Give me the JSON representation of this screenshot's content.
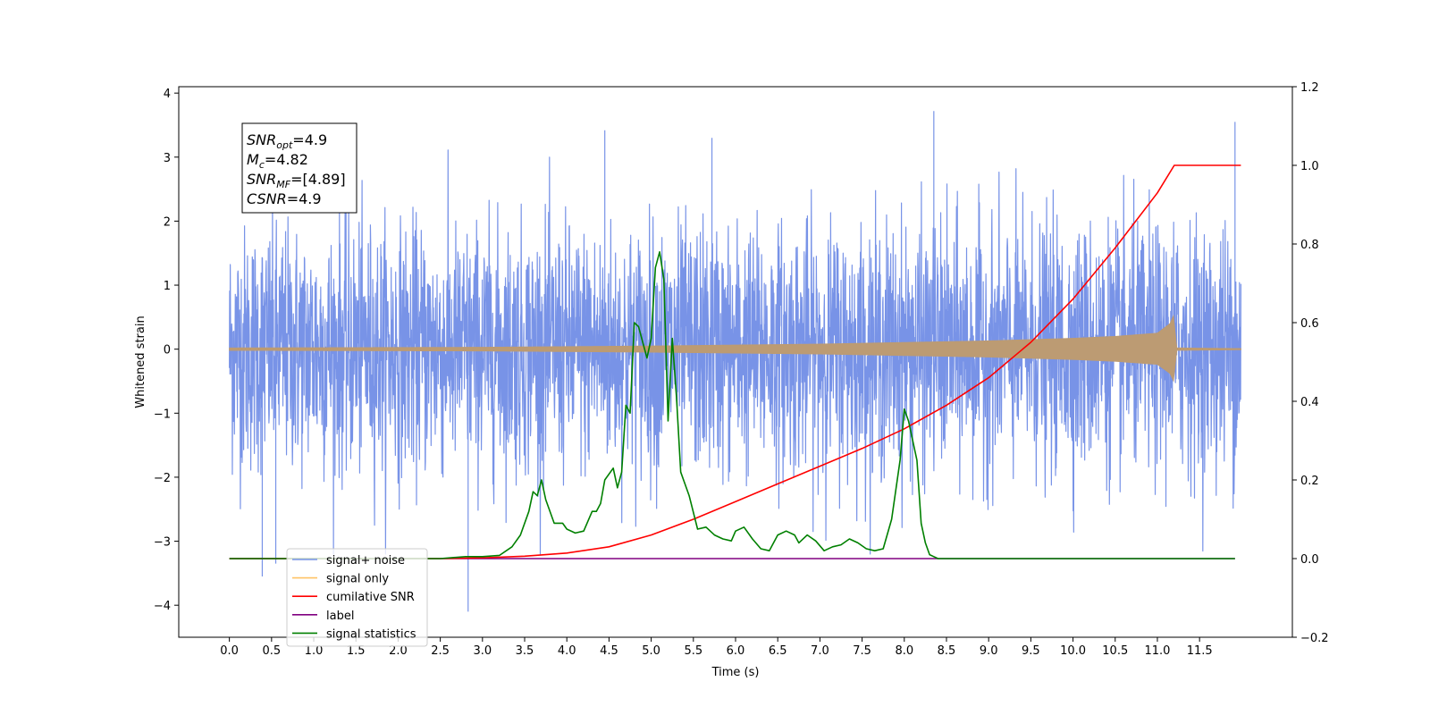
{
  "chart_data": {
    "type": "line",
    "xlabel": "Time (s)",
    "ylabel": "Whitened strain",
    "xlim": [
      -0.6,
      12.6
    ],
    "ylim_left": [
      -4.5,
      4.1
    ],
    "ylim_right": [
      -0.2,
      1.2
    ],
    "x_ticks": [
      0.0,
      0.5,
      1.0,
      1.5,
      2.0,
      2.5,
      3.0,
      3.5,
      4.0,
      4.5,
      5.0,
      5.5,
      6.0,
      6.5,
      7.0,
      7.5,
      8.0,
      8.5,
      9.0,
      9.5,
      10.0,
      10.5,
      11.0,
      11.5
    ],
    "x_tick_labels": [
      "0.0",
      "0.5",
      "1.0",
      "1.5",
      "2.0",
      "2.5",
      "3.0",
      "3.5",
      "4.0",
      "4.5",
      "5.0",
      "5.5",
      "6.0",
      "6.5",
      "7.0",
      "7.5",
      "8.0",
      "8.5",
      "9.0",
      "9.5",
      "10.0",
      "10.5",
      "11.0",
      "11.5"
    ],
    "y_left_ticks": [
      -4,
      -3,
      -2,
      -1,
      0,
      1,
      2,
      3,
      4
    ],
    "y_left_tick_labels": [
      "−4",
      "−3",
      "−2",
      "−1",
      "0",
      "1",
      "2",
      "3",
      "4"
    ],
    "y_right_ticks": [
      -0.2,
      0.0,
      0.2,
      0.4,
      0.6,
      0.8,
      1.0,
      1.2
    ],
    "y_right_tick_labels": [
      "−0.2",
      "0.0",
      "0.2",
      "0.4",
      "0.6",
      "0.8",
      "1.0",
      "1.2"
    ],
    "grid": false,
    "legend_position": "lower-left",
    "annotation": {
      "lines": [
        {
          "base": "SNR",
          "sub": "opt",
          "value": "=4.9"
        },
        {
          "base": "M",
          "sub": "c",
          "value": "=4.82"
        },
        {
          "base": "SNR",
          "sub": "MF",
          "value": "=[4.89]"
        },
        {
          "base": "CSNR",
          "sub": "",
          "value": "=4.9"
        }
      ]
    },
    "series": [
      {
        "name": "signal+ noise",
        "color": "#7893e7",
        "axis": "left",
        "x_range": [
          0.0,
          11.99
        ],
        "typical_amplitude": [
          -2.3,
          2.3
        ],
        "extremes": [
          [
            0.39,
            -3.55
          ],
          [
            0.55,
            -3.35
          ],
          [
            2.83,
            -4.1
          ],
          [
            8.35,
            3.72
          ],
          [
            11.92,
            3.55
          ],
          [
            4.45,
            3.42
          ],
          [
            5.72,
            3.3
          ]
        ]
      },
      {
        "name": "signal only",
        "color": "#ffc264",
        "axis": "left",
        "x_range": [
          0.0,
          11.99
        ],
        "envelope": [
          [
            0.0,
            0.02
          ],
          [
            3.0,
            0.03
          ],
          [
            5.0,
            0.05
          ],
          [
            7.0,
            0.08
          ],
          [
            9.0,
            0.13
          ],
          [
            10.0,
            0.17
          ],
          [
            10.5,
            0.2
          ],
          [
            11.0,
            0.25
          ],
          [
            11.15,
            0.4
          ],
          [
            11.2,
            0.55
          ],
          [
            11.22,
            0.02
          ],
          [
            11.99,
            0.01
          ]
        ],
        "apparent_color": "#bc9b73"
      },
      {
        "name": "cumilative SNR",
        "color": "#ff0000",
        "axis": "right",
        "x": [
          0.0,
          2.5,
          3.0,
          3.5,
          4.0,
          4.5,
          5.0,
          5.5,
          6.0,
          6.5,
          7.0,
          7.5,
          8.0,
          8.5,
          9.0,
          9.5,
          10.0,
          10.5,
          11.0,
          11.2,
          11.99
        ],
        "values": [
          0.0,
          0.0,
          0.002,
          0.006,
          0.014,
          0.03,
          0.06,
          0.1,
          0.145,
          0.19,
          0.235,
          0.28,
          0.33,
          0.39,
          0.46,
          0.55,
          0.66,
          0.79,
          0.93,
          1.0,
          1.0
        ]
      },
      {
        "name": "label",
        "color": "#800080",
        "axis": "right",
        "x": [
          0.0,
          11.92
        ],
        "values": [
          0.0,
          0.0
        ]
      },
      {
        "name": "signal statistics",
        "color": "#008000",
        "axis": "right",
        "x": [
          0.0,
          2.5,
          2.8,
          3.0,
          3.2,
          3.35,
          3.45,
          3.55,
          3.6,
          3.65,
          3.7,
          3.75,
          3.85,
          3.95,
          4.0,
          4.1,
          4.2,
          4.3,
          4.35,
          4.4,
          4.45,
          4.55,
          4.6,
          4.65,
          4.7,
          4.75,
          4.8,
          4.85,
          4.9,
          4.95,
          5.0,
          5.05,
          5.1,
          5.15,
          5.2,
          5.25,
          5.3,
          5.35,
          5.4,
          5.45,
          5.55,
          5.65,
          5.75,
          5.85,
          5.95,
          6.0,
          6.1,
          6.2,
          6.3,
          6.4,
          6.5,
          6.6,
          6.7,
          6.75,
          6.85,
          6.95,
          7.05,
          7.15,
          7.25,
          7.35,
          7.45,
          7.55,
          7.65,
          7.75,
          7.85,
          7.95,
          8.0,
          8.05,
          8.15,
          8.2,
          8.25,
          8.3,
          8.35,
          8.4,
          8.5,
          11.92
        ],
        "values": [
          0.0,
          0.0,
          0.005,
          0.005,
          0.008,
          0.03,
          0.06,
          0.12,
          0.17,
          0.16,
          0.2,
          0.15,
          0.09,
          0.09,
          0.075,
          0.065,
          0.07,
          0.12,
          0.12,
          0.14,
          0.2,
          0.23,
          0.18,
          0.22,
          0.39,
          0.37,
          0.6,
          0.59,
          0.55,
          0.51,
          0.56,
          0.74,
          0.78,
          0.71,
          0.35,
          0.56,
          0.41,
          0.22,
          0.19,
          0.16,
          0.075,
          0.08,
          0.06,
          0.05,
          0.045,
          0.07,
          0.08,
          0.05,
          0.025,
          0.02,
          0.06,
          0.07,
          0.06,
          0.04,
          0.06,
          0.045,
          0.02,
          0.03,
          0.035,
          0.05,
          0.04,
          0.025,
          0.02,
          0.025,
          0.1,
          0.25,
          0.38,
          0.35,
          0.25,
          0.09,
          0.04,
          0.01,
          0.005,
          0.0,
          0.0,
          0.0
        ]
      }
    ]
  }
}
